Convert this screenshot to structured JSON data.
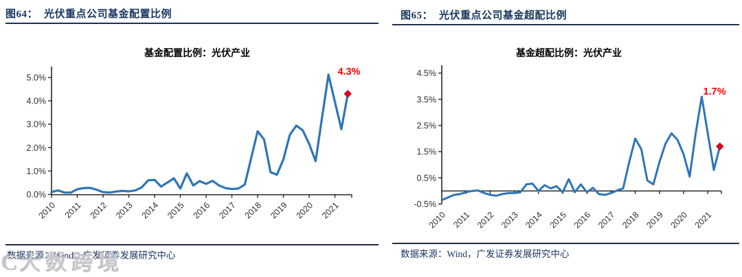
{
  "figures": [
    {
      "id": "fig64",
      "header_label": "图64：",
      "header_title": "光伏重点公司基金配置比例",
      "chart_title": "基金配置比例：光伏产业",
      "source_text": "数据来源：Wind，广发证券发展研究中心",
      "end_point_label": "4.3%"
    },
    {
      "id": "fig65",
      "header_label": "图65：",
      "header_title": "光伏重点公司基金超配比例",
      "chart_title": "基金超配比例：光伏产业",
      "source_text": "数据来源：Wind，广发证券发展研究中心",
      "end_point_label": "1.7%"
    }
  ],
  "watermark": {
    "mark": "C",
    "text": "大数跨境"
  },
  "colors": {
    "line_blue": "#2E75B6",
    "accent_red": "#FF0000",
    "marker_red": "#E60012",
    "header_navy": "#17365D",
    "axis_text": "#303030",
    "axis_line": "#262626"
  },
  "chart_data": [
    {
      "type": "line",
      "title": "基金配置比例：光伏产业",
      "frequency": "quarterly",
      "x_start": "2010Q1",
      "x_end": "2021Q3",
      "x_tick_labels": [
        "2010",
        "2011",
        "2012",
        "2013",
        "2014",
        "2015",
        "2016",
        "2017",
        "2018",
        "2019",
        "2020",
        "2021"
      ],
      "y_tick_labels": [
        "0.0%",
        "1.0%",
        "2.0%",
        "3.0%",
        "4.0%",
        "5.0%"
      ],
      "ylim": [
        0,
        5
      ],
      "y_unit": "%",
      "grid": false,
      "legend": "none",
      "x": [
        "2010Q1",
        "2010Q2",
        "2010Q3",
        "2010Q4",
        "2011Q1",
        "2011Q2",
        "2011Q3",
        "2011Q4",
        "2012Q1",
        "2012Q2",
        "2012Q3",
        "2012Q4",
        "2013Q1",
        "2013Q2",
        "2013Q3",
        "2013Q4",
        "2014Q1",
        "2014Q2",
        "2014Q3",
        "2014Q4",
        "2015Q1",
        "2015Q2",
        "2015Q3",
        "2015Q4",
        "2016Q1",
        "2016Q2",
        "2016Q3",
        "2016Q4",
        "2017Q1",
        "2017Q2",
        "2017Q3",
        "2017Q4",
        "2018Q1",
        "2018Q2",
        "2018Q3",
        "2018Q4",
        "2019Q1",
        "2019Q2",
        "2019Q3",
        "2019Q4",
        "2020Q1",
        "2020Q2",
        "2020Q3",
        "2020Q4",
        "2021Q1",
        "2021Q2",
        "2021Q3"
      ],
      "values": [
        0.1,
        0.17,
        0.08,
        0.08,
        0.22,
        0.27,
        0.28,
        0.2,
        0.1,
        0.08,
        0.12,
        0.15,
        0.13,
        0.17,
        0.3,
        0.6,
        0.62,
        0.33,
        0.51,
        0.69,
        0.25,
        0.9,
        0.38,
        0.57,
        0.45,
        0.58,
        0.38,
        0.27,
        0.23,
        0.25,
        0.42,
        1.55,
        2.7,
        2.35,
        0.95,
        0.84,
        1.5,
        2.55,
        2.94,
        2.74,
        2.16,
        1.42,
        3.3,
        5.12,
        3.95,
        2.79,
        4.3
      ],
      "last_point": {
        "x": "2021Q3",
        "value": 4.3,
        "label": "4.3%",
        "marker": "red-diamond"
      }
    },
    {
      "type": "line",
      "title": "基金超配比例：光伏产业",
      "frequency": "quarterly",
      "x_start": "2010Q1",
      "x_end": "2021Q3",
      "x_tick_labels": [
        "2010",
        "2011",
        "2012",
        "2013",
        "2014",
        "2015",
        "2016",
        "2017",
        "2018",
        "2019",
        "2020",
        "2021"
      ],
      "y_tick_labels": [
        "-0.5%",
        "0.5%",
        "1.5%",
        "2.5%",
        "3.5%",
        "4.5%"
      ],
      "ylim": [
        -0.5,
        4.5
      ],
      "y_unit": "%",
      "grid": false,
      "legend": "none",
      "x": [
        "2010Q1",
        "2010Q2",
        "2010Q3",
        "2010Q4",
        "2011Q1",
        "2011Q2",
        "2011Q3",
        "2011Q4",
        "2012Q1",
        "2012Q2",
        "2012Q3",
        "2012Q4",
        "2013Q1",
        "2013Q2",
        "2013Q3",
        "2013Q4",
        "2014Q1",
        "2014Q2",
        "2014Q3",
        "2014Q4",
        "2015Q1",
        "2015Q2",
        "2015Q3",
        "2015Q4",
        "2016Q1",
        "2016Q2",
        "2016Q3",
        "2016Q4",
        "2017Q1",
        "2017Q2",
        "2017Q3",
        "2017Q4",
        "2018Q1",
        "2018Q2",
        "2018Q3",
        "2018Q4",
        "2019Q1",
        "2019Q2",
        "2019Q3",
        "2019Q4",
        "2020Q1",
        "2020Q2",
        "2020Q3",
        "2020Q4",
        "2021Q1",
        "2021Q2",
        "2021Q3"
      ],
      "values": [
        -0.35,
        -0.25,
        -0.15,
        -0.12,
        -0.05,
        0.0,
        0.02,
        -0.08,
        -0.15,
        -0.18,
        -0.12,
        -0.08,
        -0.08,
        -0.05,
        0.25,
        0.28,
        0.0,
        0.22,
        0.1,
        0.18,
        -0.05,
        0.45,
        -0.05,
        0.25,
        -0.05,
        0.12,
        -0.12,
        -0.15,
        -0.08,
        0.02,
        0.1,
        1.1,
        2.0,
        1.6,
        0.4,
        0.25,
        1.1,
        1.8,
        2.2,
        1.95,
        1.4,
        0.55,
        2.2,
        3.6,
        2.2,
        0.8,
        1.7
      ],
      "last_point": {
        "x": "2021Q3",
        "value": 1.7,
        "label": "1.7%",
        "marker": "red-diamond"
      }
    }
  ]
}
